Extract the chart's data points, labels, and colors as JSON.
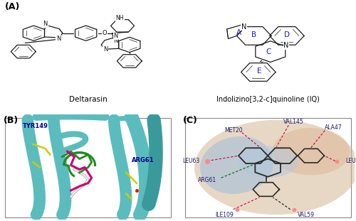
{
  "panel_labels": [
    "(A)",
    "(B)",
    "(C)"
  ],
  "panel_label_fontsize": 9,
  "panel_label_fontweight": "bold",
  "deltarasin_label": "Deltarasin",
  "iq_label": "Indolizino[3,2-c]quinoline (IQ)",
  "background_color": "#ffffff",
  "teal_color": "#5bbcbd",
  "teal_dark": "#3a9a9b",
  "green_color": "#228B22",
  "magenta_color": "#cc0077",
  "yellow_color": "#cccc00",
  "white_mol": "#eeeeee",
  "panel_b_label1": "TYR149",
  "panel_b_label2": "ARG61",
  "ring_label_color": "#1a1acc",
  "bond_color": "#111111",
  "label_color_dark": "#1a1a6a",
  "dashed_red": "#cc0044",
  "dashed_green": "#006600",
  "dashed_black": "#111111",
  "surface_beige": "#dfc8a8",
  "surface_blue": "#b8cfe0",
  "mol_dark": "#2a2a2a"
}
